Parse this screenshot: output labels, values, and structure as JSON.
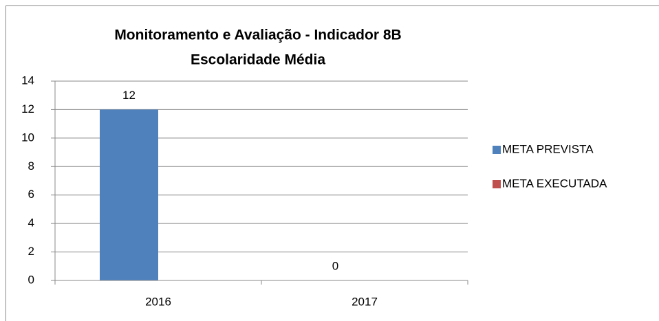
{
  "chart_data": {
    "type": "bar",
    "title": "Monitoramento e Avaliação - Indicador 8B",
    "subtitle": "Escolaridade Média",
    "categories": [
      "2016",
      "2017"
    ],
    "series": [
      {
        "name": "META PREVISTA",
        "color": "#4f81bd",
        "values": [
          12,
          0
        ]
      },
      {
        "name": "META EXECUTADA",
        "color": "#c0504d",
        "values": [
          null,
          null
        ]
      }
    ],
    "ylim": [
      0,
      14
    ],
    "yticks": [
      0,
      2,
      4,
      6,
      8,
      10,
      12,
      14
    ],
    "grid": true,
    "legend": "right",
    "data_labels": true
  }
}
